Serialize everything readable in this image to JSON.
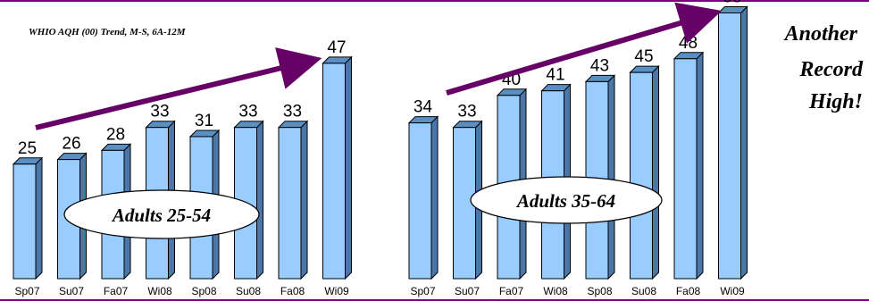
{
  "title": "WHIO AQH (00) Trend, M-S, 6A-12M",
  "callout": [
    "Another",
    "Record",
    "High!"
  ],
  "colors": {
    "bar_front": "#99ccff",
    "bar_top": "#5a8fc4",
    "bar_side": "#4a77a8",
    "bar_stroke": "#000000",
    "arrow": "#660066",
    "frame": "#800080"
  },
  "chart_data": [
    {
      "type": "bar",
      "label": "Adults 25-54",
      "categories": [
        "Sp07",
        "Su07",
        "Fa07",
        "Wi08",
        "Sp08",
        "Su08",
        "Fa08",
        "Wi09"
      ],
      "values": [
        25,
        26,
        28,
        33,
        31,
        33,
        33,
        47
      ],
      "trend": "up"
    },
    {
      "type": "bar",
      "label": "Adults 35-64",
      "categories": [
        "Sp07",
        "Su07",
        "Fa07",
        "Wi08",
        "Sp08",
        "Su08",
        "Fa08",
        "Wi09"
      ],
      "values": [
        34,
        33,
        40,
        41,
        43,
        45,
        48,
        58
      ],
      "trend": "up"
    }
  ]
}
